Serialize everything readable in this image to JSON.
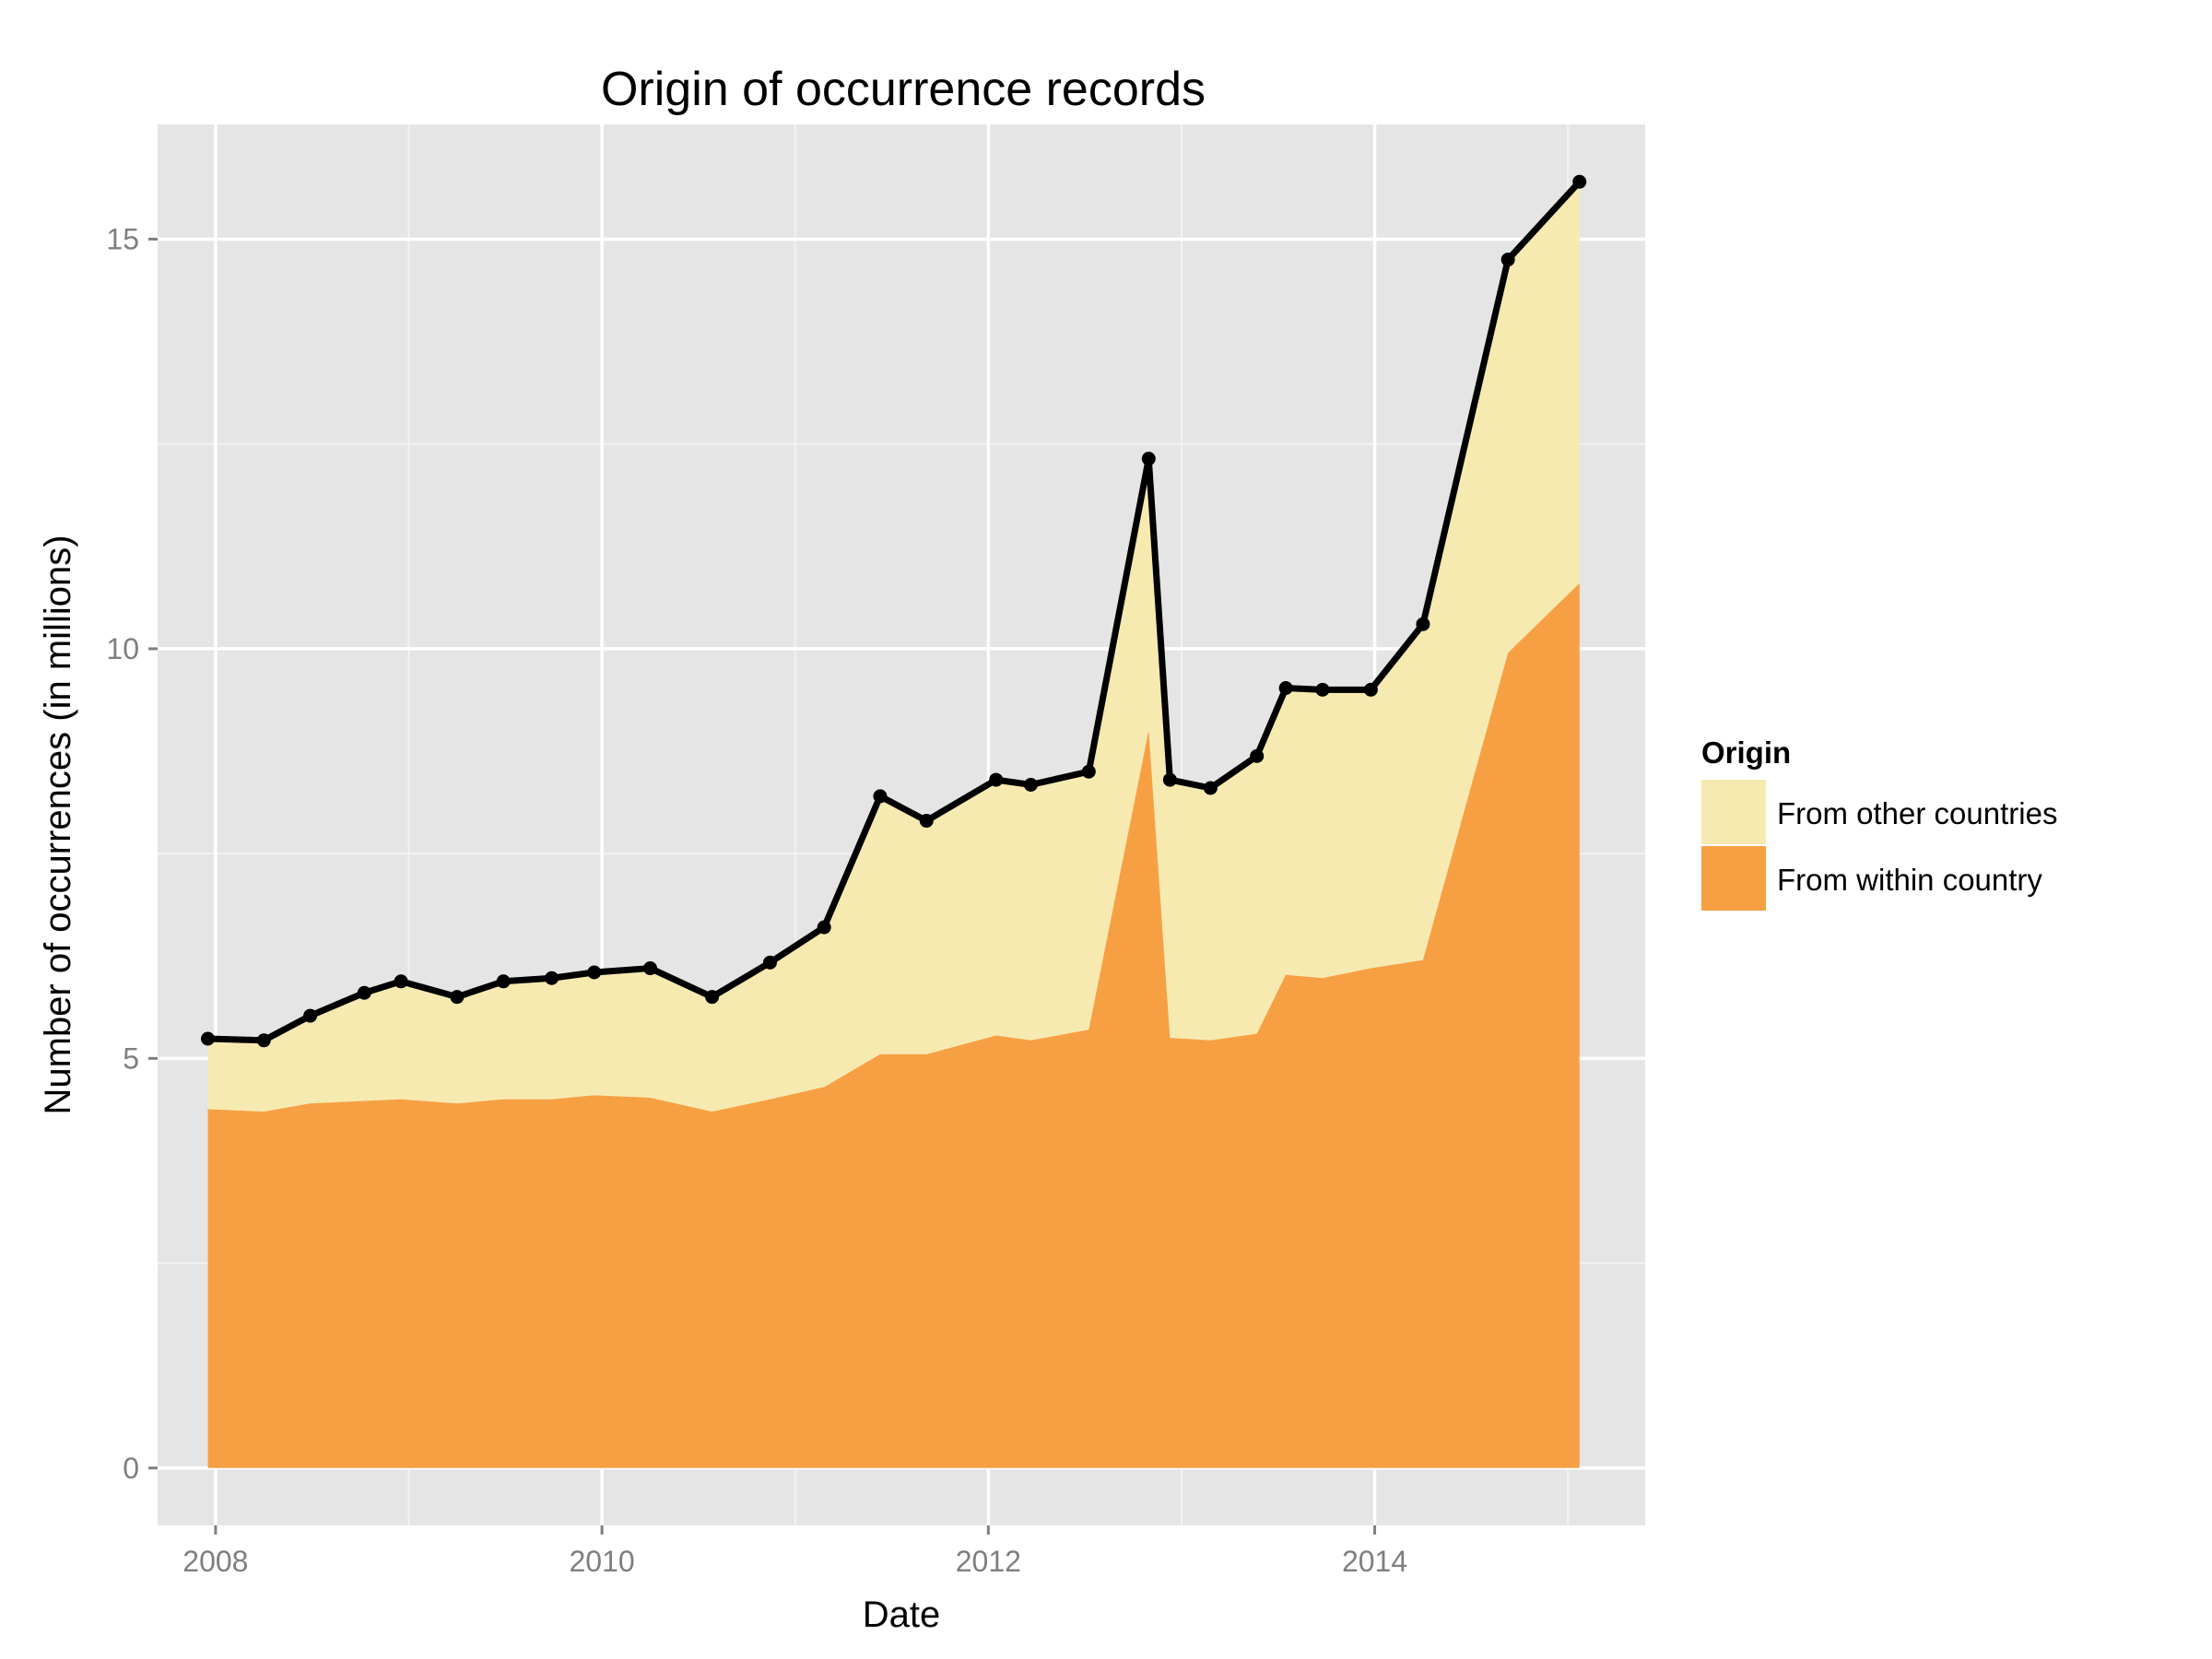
{
  "chart_data": {
    "type": "area",
    "title": "Origin of occurrence records",
    "xlabel": "Date",
    "ylabel": "Number of occurrences (in millions)",
    "xlim": [
      2007.7,
      2015.4
    ],
    "ylim": [
      -0.7,
      16.4
    ],
    "x_ticks": [
      2008,
      2010,
      2012,
      2014
    ],
    "x_tick_labels": [
      "2008",
      "2010",
      "2012",
      "2014"
    ],
    "y_ticks": [
      0,
      5,
      10,
      15
    ],
    "y_tick_labels": [
      "0",
      "5",
      "10",
      "15"
    ],
    "grid": true,
    "stacked": true,
    "legend": {
      "title": "Origin",
      "position": "right",
      "entries": [
        {
          "label": "From other countries",
          "color": "#f7eab0"
        },
        {
          "label": "From within country",
          "color": "#f7a043"
        }
      ]
    },
    "x": [
      2007.96,
      2008.25,
      2008.49,
      2008.77,
      2008.96,
      2009.25,
      2009.49,
      2009.74,
      2009.96,
      2010.25,
      2010.57,
      2010.87,
      2011.15,
      2011.44,
      2011.68,
      2012.04,
      2012.22,
      2012.52,
      2012.83,
      2012.94,
      2013.15,
      2013.39,
      2013.54,
      2013.73,
      2013.98,
      2014.25,
      2014.69,
      2015.06
    ],
    "series": [
      {
        "name": "From within country",
        "color": "#f7a043",
        "values": [
          4.38,
          4.35,
          4.45,
          4.48,
          4.5,
          4.45,
          4.5,
          4.5,
          4.55,
          4.52,
          4.35,
          4.5,
          4.65,
          5.05,
          5.05,
          5.28,
          5.22,
          5.35,
          9.0,
          5.25,
          5.22,
          5.3,
          6.02,
          5.98,
          6.1,
          6.2,
          9.95,
          10.8
        ]
      },
      {
        "name": "From other countries",
        "color": "#f7eab0",
        "values": [
          0.86,
          0.87,
          1.07,
          1.32,
          1.44,
          1.3,
          1.44,
          1.48,
          1.5,
          1.58,
          1.4,
          1.67,
          1.95,
          3.15,
          2.85,
          3.12,
          3.12,
          3.15,
          3.32,
          3.15,
          3.08,
          3.39,
          3.5,
          3.52,
          3.4,
          4.1,
          4.8,
          4.9
        ]
      }
    ],
    "total_line": {
      "color": "#000000",
      "values": [
        5.24,
        5.22,
        5.52,
        5.8,
        5.94,
        5.75,
        5.94,
        5.98,
        6.05,
        6.1,
        5.75,
        6.17,
        6.6,
        8.2,
        7.9,
        8.4,
        8.34,
        8.5,
        12.32,
        8.4,
        8.3,
        8.69,
        9.52,
        9.5,
        9.5,
        10.3,
        14.75,
        15.7
      ]
    },
    "colors": {
      "panel_bg": "#e5e5e5",
      "grid_major": "#ffffff",
      "grid_minor": "#f2f2f2",
      "tick_label": "#7f7f7f",
      "text": "#000000"
    }
  }
}
